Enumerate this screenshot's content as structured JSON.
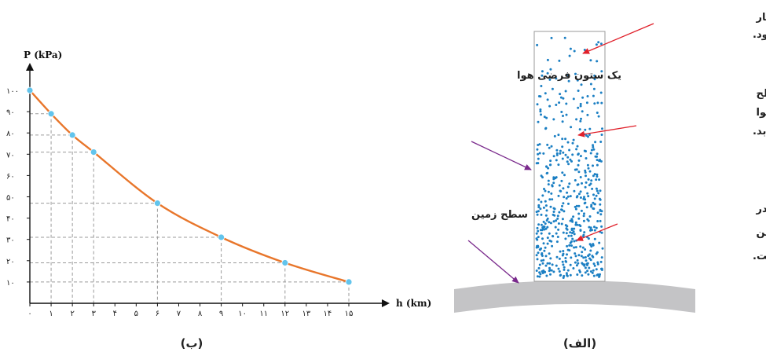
{
  "panel_b_label": "(ب)",
  "panel_a_label": "(الف)",
  "chart_data": {
    "type": "line",
    "xlabel": "h (km)",
    "ylabel": "P (kPa)",
    "xlim": [
      0,
      15
    ],
    "ylim": [
      0,
      100
    ],
    "x_ticks": [
      "٠",
      "١",
      "٢",
      "٣",
      "۴",
      "۵",
      "۶",
      "٧",
      "٨",
      "٩",
      "١٠",
      "١١",
      "١٢",
      "١٣",
      "١۴",
      "١۵"
    ],
    "y_ticks": [
      "١٠",
      "٢٠",
      "٣٠",
      "۴٠",
      "۵٠",
      "۶٠",
      "٧٠",
      "٨٠",
      "٩٠",
      "١٠٠"
    ],
    "x": [
      0,
      1,
      2,
      3,
      6,
      9,
      12,
      15
    ],
    "y": [
      100,
      89,
      79,
      71,
      47,
      31,
      19,
      10
    ],
    "grid": "dashed guide lines to points",
    "curve_color": "#e8762b",
    "point_color": "#62c4ec"
  },
  "diagram": {
    "air_column_label": "یک ستون فرضی هوا",
    "ground_label": "سطح زمین",
    "top_note": [
      "بیرون جو زمین، چگالی و فشار",
      "هوا تقریباً صفر می شود."
    ],
    "middle_note": [
      "با افزایش ارتفاع از سطح",
      "زمین، چگالی و فشار هوا",
      "کاهش می‌یابد."
    ],
    "bottom_note": [
      "چگالی و فشار هوا در",
      "سطح زمین بیشترین",
      "مقدار است."
    ],
    "dot_color": "#1b7fc3",
    "pointer_arrow_color": "#e0202a",
    "label_arrow_color": "#7a2a8c",
    "ground_color": "#c4c4c6"
  }
}
